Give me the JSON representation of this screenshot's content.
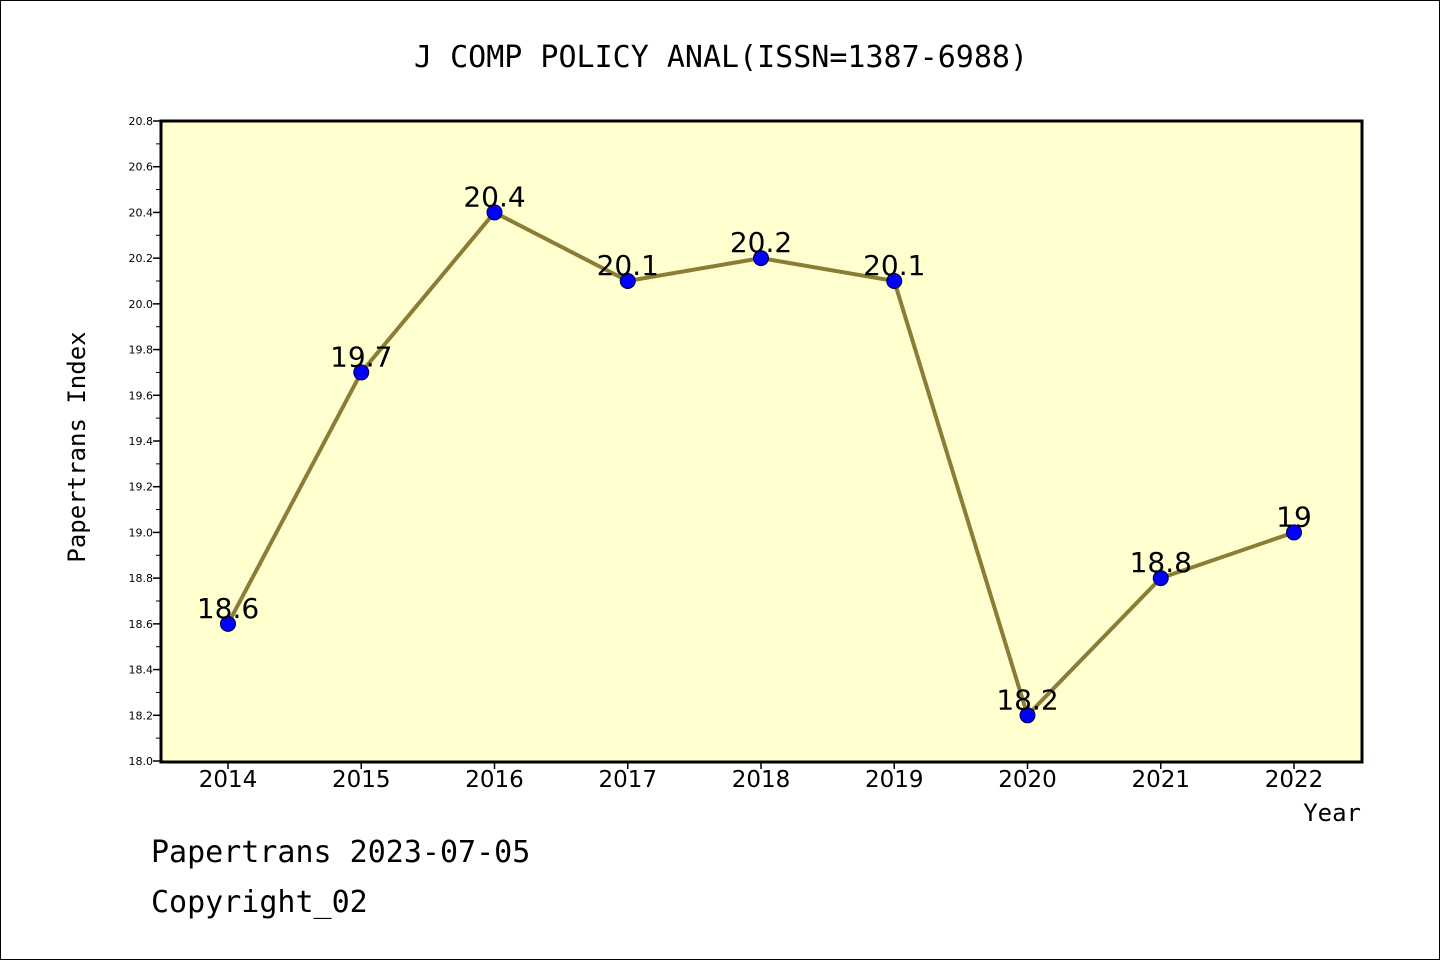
{
  "chart_data": {
    "type": "line",
    "title": "J COMP POLICY ANAL(ISSN=1387-6988)",
    "xlabel": "Year",
    "ylabel": "Papertrans Index",
    "x": [
      "2014",
      "2015",
      "2016",
      "2017",
      "2018",
      "2019",
      "2020",
      "2021",
      "2022"
    ],
    "series": [
      {
        "values": [
          18.6,
          19.7,
          20.4,
          20.1,
          20.2,
          20.1,
          18.2,
          18.8,
          19.0
        ],
        "labels": [
          "18.6",
          "19.7",
          "20.4",
          "20.1",
          "20.2",
          "20.1",
          "18.2",
          "18.8",
          "19"
        ]
      }
    ],
    "ylim": [
      18.0,
      20.8
    ],
    "yticks": [
      "18.0",
      "18.2",
      "18.4",
      "18.6",
      "18.8",
      "19.0",
      "19.2",
      "19.4",
      "19.6",
      "19.8",
      "20.0",
      "20.2",
      "20.4",
      "20.6",
      "20.8"
    ],
    "grid": false,
    "colors": {
      "plot_background": "#ffffd0",
      "line": "#8b7d36",
      "marker": "#0000ff"
    }
  },
  "footer": {
    "line1": "Papertrans 2023-07-05",
    "line2": "Copyright_02"
  }
}
